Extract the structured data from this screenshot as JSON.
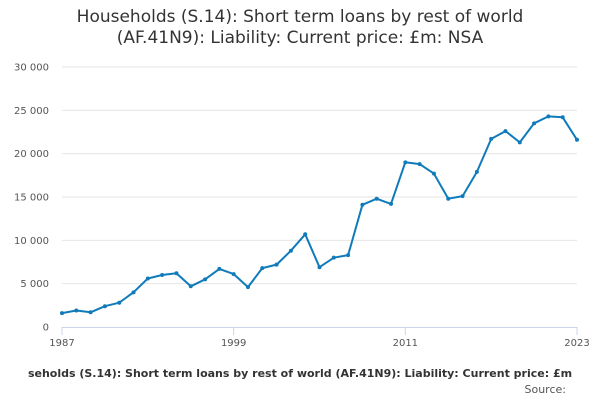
{
  "chart_data": {
    "type": "line",
    "title_lines": [
      "Households (S.14): Short term loans by rest of world",
      "(AF.41N9): Liability: Current price: £m: NSA"
    ],
    "subtitle": "seholds (S.14): Short term loans by rest of world (AF.41N9): Liability: Current price: £m",
    "source": "Source:",
    "xlabel": "",
    "ylabel": "",
    "x_ticks": [
      "1987",
      "1999",
      "2011",
      "2023"
    ],
    "y_ticks": [
      "0",
      "5 000",
      "10 000",
      "15 000",
      "20 000",
      "25 000",
      "30 000"
    ],
    "xlim": [
      1987,
      2023
    ],
    "ylim": [
      0,
      30000
    ],
    "grid": true,
    "legend": "none",
    "line_color": "#0f7bba",
    "series": [
      {
        "x": [
          1987,
          1988,
          1989,
          1990,
          1991,
          1992,
          1993,
          1994,
          1995,
          1996,
          1997,
          1998,
          1999,
          2000,
          2001,
          2002,
          2003,
          2004,
          2005,
          2006,
          2007,
          2008,
          2009,
          2010,
          2011,
          2012,
          2013,
          2014,
          2015,
          2016,
          2017,
          2018,
          2019,
          2020,
          2021,
          2022,
          2023
        ],
        "values": [
          1600,
          1900,
          1700,
          2400,
          2800,
          4000,
          5600,
          6000,
          6200,
          4700,
          5500,
          6700,
          6100,
          4600,
          6800,
          7200,
          8800,
          10700,
          6900,
          8000,
          8300,
          14100,
          14800,
          14200,
          19000,
          18800,
          17700,
          14800,
          15100,
          17900,
          21700,
          22600,
          21300,
          23500,
          24300,
          24200,
          21600
        ]
      }
    ]
  }
}
